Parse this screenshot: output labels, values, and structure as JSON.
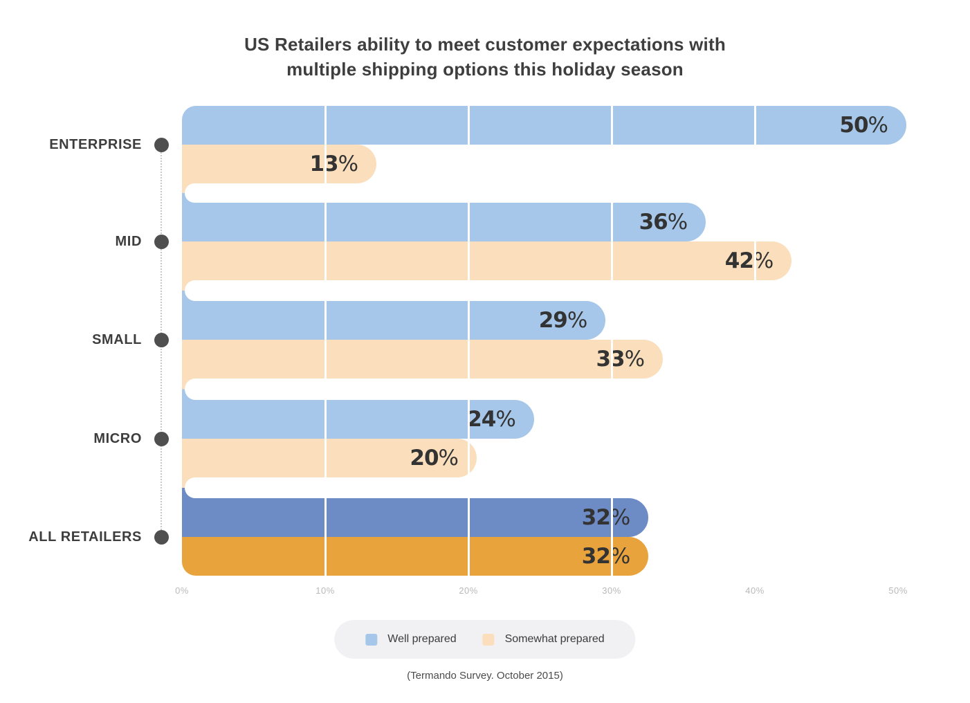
{
  "title": {
    "line1": "US Retailers ability to meet customer expectations with",
    "line2": "multiple shipping options this holiday season"
  },
  "chart_data": {
    "type": "bar",
    "orientation": "horizontal",
    "title": "US Retailers ability to meet customer expectations with multiple shipping options this holiday season",
    "categories": [
      "ENTERPRISE",
      "MID",
      "SMALL",
      "MICRO",
      "ALL RETAILERS"
    ],
    "series": [
      {
        "name": "Well prepared",
        "values": [
          50,
          36,
          29,
          24,
          32
        ],
        "color": "#a6c7e9",
        "highlight_color": "#6d8cc6"
      },
      {
        "name": "Somewhat prepared",
        "values": [
          13,
          42,
          33,
          20,
          32
        ],
        "color": "#fbdfbc",
        "highlight_color": "#e9a33c"
      }
    ],
    "highlight_category": "ALL RETAILERS",
    "highlight_index": 4,
    "value_suffix": "%",
    "xlabel": "",
    "ylabel": "",
    "xlim": [
      0,
      50
    ],
    "x_ticks": [
      "0%",
      "10%",
      "20%",
      "30%",
      "40%",
      "50%"
    ],
    "gridline_percents": [
      10,
      20,
      30,
      40
    ],
    "grid": true,
    "legend_position": "bottom"
  },
  "legend": {
    "items": [
      {
        "label": "Well prepared",
        "color": "#a6c7e9"
      },
      {
        "label": "Somewhat prepared",
        "color": "#fbdfbc"
      }
    ]
  },
  "footnote": "(Termando Survey. October 2015)",
  "colors": {
    "background": "#ffffff",
    "title_text": "#3e3e3e",
    "value_text": "#333333",
    "category_text": "#3d3d3d",
    "category_dot": "#4f4f4f",
    "dotted_line": "#c6c6c6",
    "tick_text": "#b9b9b9",
    "legend_background": "#f1f1f3",
    "gridline": "#ffffff"
  }
}
